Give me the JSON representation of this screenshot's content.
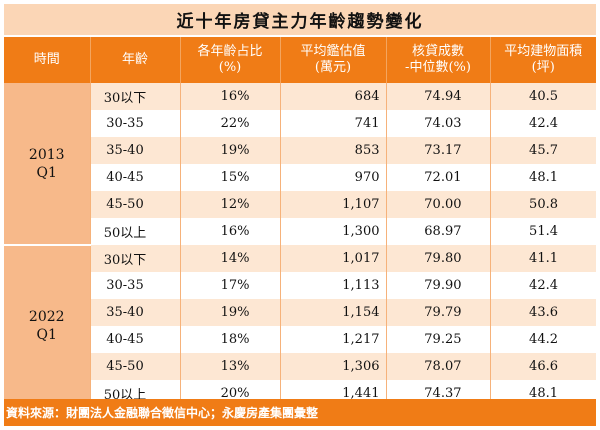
{
  "title": "近十年房貸主力年齡趨勢變化",
  "columns": {
    "period": "時間",
    "age": "年齡",
    "share_l1": "各年齡占比",
    "share_l2": "(%)",
    "price_l1": "平均鑑估值",
    "price_l2": "(萬元)",
    "ltv_l1": "核貸成數",
    "ltv_l2": "-中位數(%)",
    "area_l1": "平均建物面積",
    "area_l2": "(坪)"
  },
  "groups": [
    {
      "period_line1": "2013",
      "period_line2": "Q1",
      "rows": [
        {
          "age": "30以下",
          "share": "16%",
          "price": "684",
          "ltv": "74.94",
          "area": "40.5"
        },
        {
          "age": "30-35",
          "share": "22%",
          "price": "741",
          "ltv": "74.03",
          "area": "42.4"
        },
        {
          "age": "35-40",
          "share": "19%",
          "price": "853",
          "ltv": "73.17",
          "area": "45.7"
        },
        {
          "age": "40-45",
          "share": "15%",
          "price": "970",
          "ltv": "72.01",
          "area": "48.1"
        },
        {
          "age": "45-50",
          "share": "12%",
          "price": "1,107",
          "ltv": "70.00",
          "area": "50.8"
        },
        {
          "age": "50以上",
          "share": "16%",
          "price": "1,300",
          "ltv": "68.97",
          "area": "51.4"
        }
      ]
    },
    {
      "period_line1": "2022",
      "period_line2": "Q1",
      "rows": [
        {
          "age": "30以下",
          "share": "14%",
          "price": "1,017",
          "ltv": "79.80",
          "area": "41.1"
        },
        {
          "age": "30-35",
          "share": "17%",
          "price": "1,113",
          "ltv": "79.90",
          "area": "42.4"
        },
        {
          "age": "35-40",
          "share": "19%",
          "price": "1,154",
          "ltv": "79.79",
          "area": "43.6"
        },
        {
          "age": "40-45",
          "share": "18%",
          "price": "1,217",
          "ltv": "79.25",
          "area": "44.2"
        },
        {
          "age": "45-50",
          "share": "13%",
          "price": "1,306",
          "ltv": "78.07",
          "area": "46.6"
        },
        {
          "age": "50以上",
          "share": "20%",
          "price": "1,441",
          "ltv": "74.37",
          "area": "48.1"
        }
      ]
    }
  ],
  "source": "資料來源：財團法人金融聯合徵信中心；永慶房產集團彙整"
}
